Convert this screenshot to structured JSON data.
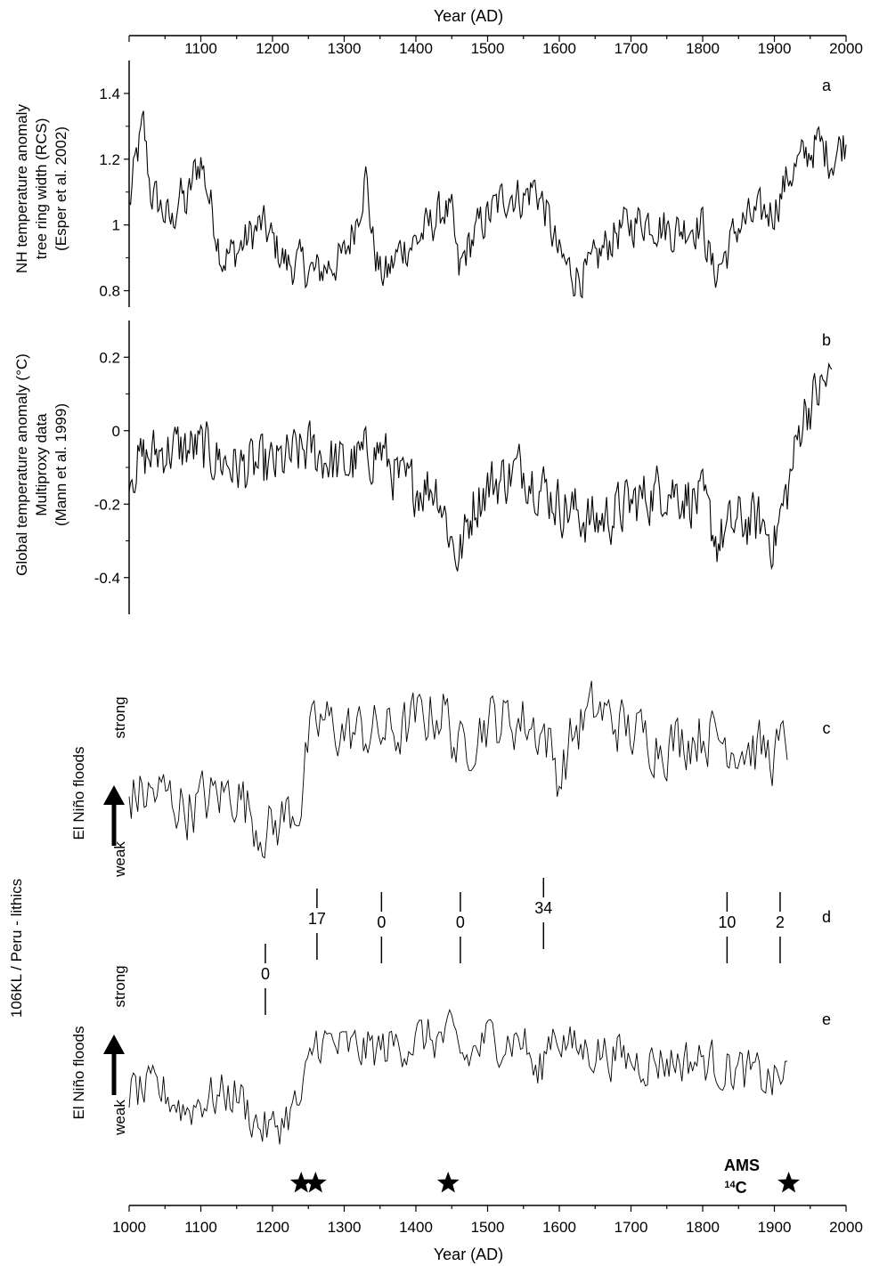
{
  "chart_data": [
    {
      "type": "line",
      "panel": "a",
      "ylabel": [
        "NH temperature anomaly",
        "tree ring width (RCS)",
        "(Esper et al. 2002)"
      ],
      "yticks": [
        0.8,
        1.0,
        1.2,
        1.4
      ],
      "ytick_labels": [
        "0.8",
        "1",
        "1.2",
        "1.4"
      ],
      "ylim": [
        0.75,
        1.5
      ],
      "xlim": [
        1000,
        2000
      ],
      "x_top_label": "Year (AD)",
      "x_top_ticks": [
        "1100",
        "1200",
        "1300",
        "1400",
        "1500",
        "1600",
        "1700",
        "1800",
        "1900",
        "2000"
      ],
      "anchors": [
        [
          1000,
          1.05
        ],
        [
          1010,
          1.2
        ],
        [
          1020,
          1.3
        ],
        [
          1030,
          1.1
        ],
        [
          1045,
          1.05
        ],
        [
          1060,
          1.0
        ],
        [
          1070,
          1.1
        ],
        [
          1080,
          1.05
        ],
        [
          1090,
          1.15
        ],
        [
          1100,
          1.2
        ],
        [
          1115,
          1.05
        ],
        [
          1130,
          0.9
        ],
        [
          1150,
          0.92
        ],
        [
          1170,
          0.97
        ],
        [
          1185,
          1.0
        ],
        [
          1200,
          0.95
        ],
        [
          1220,
          0.88
        ],
        [
          1240,
          0.88
        ],
        [
          1260,
          0.85
        ],
        [
          1280,
          0.88
        ],
        [
          1300,
          0.9
        ],
        [
          1310,
          0.97
        ],
        [
          1320,
          1.05
        ],
        [
          1330,
          1.15
        ],
        [
          1340,
          0.95
        ],
        [
          1350,
          0.85
        ],
        [
          1360,
          0.85
        ],
        [
          1380,
          0.93
        ],
        [
          1400,
          0.95
        ],
        [
          1420,
          1.0
        ],
        [
          1440,
          1.05
        ],
        [
          1450,
          1.02
        ],
        [
          1460,
          0.85
        ],
        [
          1470,
          0.92
        ],
        [
          1490,
          1.0
        ],
        [
          1510,
          1.05
        ],
        [
          1530,
          1.1
        ],
        [
          1550,
          1.08
        ],
        [
          1565,
          1.12
        ],
        [
          1580,
          1.05
        ],
        [
          1600,
          0.9
        ],
        [
          1620,
          0.85
        ],
        [
          1640,
          0.85
        ],
        [
          1660,
          0.92
        ],
        [
          1680,
          0.98
        ],
        [
          1700,
          1.0
        ],
        [
          1720,
          1.02
        ],
        [
          1740,
          1.0
        ],
        [
          1760,
          0.98
        ],
        [
          1780,
          1.0
        ],
        [
          1800,
          1.0
        ],
        [
          1815,
          0.85
        ],
        [
          1830,
          0.9
        ],
        [
          1850,
          1.0
        ],
        [
          1870,
          1.02
        ],
        [
          1900,
          1.05
        ],
        [
          1920,
          1.15
        ],
        [
          1940,
          1.2
        ],
        [
          1960,
          1.25
        ],
        [
          1980,
          1.2
        ],
        [
          1995,
          1.25
        ]
      ],
      "noise": 0.06,
      "label_year": "1100"
    },
    {
      "type": "line",
      "panel": "b",
      "ylabel": [
        "Global temperature anomaly (°C)",
        "Multiproxy data",
        "(Mann et al. 1999)"
      ],
      "yticks": [
        -0.4,
        -0.2,
        0.0,
        0.2
      ],
      "ytick_labels": [
        "-0.4",
        "-0.2",
        "0",
        "0.2"
      ],
      "ylim": [
        -0.5,
        0.3
      ],
      "xlim": [
        1000,
        1980
      ],
      "anchors": [
        [
          1000,
          -0.1
        ],
        [
          1050,
          -0.05
        ],
        [
          1100,
          -0.05
        ],
        [
          1150,
          -0.1
        ],
        [
          1200,
          -0.1
        ],
        [
          1250,
          -0.05
        ],
        [
          1300,
          -0.1
        ],
        [
          1350,
          -0.05
        ],
        [
          1380,
          -0.15
        ],
        [
          1400,
          -0.15
        ],
        [
          1430,
          -0.15
        ],
        [
          1450,
          -0.3
        ],
        [
          1460,
          -0.35
        ],
        [
          1480,
          -0.2
        ],
        [
          1500,
          -0.15
        ],
        [
          1550,
          -0.1
        ],
        [
          1600,
          -0.2
        ],
        [
          1650,
          -0.25
        ],
        [
          1700,
          -0.2
        ],
        [
          1750,
          -0.15
        ],
        [
          1800,
          -0.2
        ],
        [
          1820,
          -0.3
        ],
        [
          1850,
          -0.25
        ],
        [
          1880,
          -0.25
        ],
        [
          1900,
          -0.3
        ],
        [
          1920,
          -0.15
        ],
        [
          1940,
          0.05
        ],
        [
          1960,
          0.1
        ],
        [
          1980,
          0.15
        ]
      ],
      "noise": 0.07
    },
    {
      "type": "line",
      "panel": "c",
      "ylabel": "El Niño floods",
      "scale_labels": [
        "weak",
        "strong"
      ],
      "xlim": [
        1000,
        1920
      ],
      "anchors": [
        [
          1000,
          0.28
        ],
        [
          1050,
          0.28
        ],
        [
          1080,
          0.22
        ],
        [
          1100,
          0.25
        ],
        [
          1150,
          0.3
        ],
        [
          1180,
          0.15
        ],
        [
          1200,
          0.12
        ],
        [
          1220,
          0.2
        ],
        [
          1240,
          0.25
        ],
        [
          1250,
          0.5
        ],
        [
          1270,
          0.6
        ],
        [
          1300,
          0.55
        ],
        [
          1350,
          0.55
        ],
        [
          1380,
          0.55
        ],
        [
          1400,
          0.6
        ],
        [
          1440,
          0.65
        ],
        [
          1460,
          0.45
        ],
        [
          1480,
          0.55
        ],
        [
          1500,
          0.6
        ],
        [
          1550,
          0.6
        ],
        [
          1580,
          0.55
        ],
        [
          1600,
          0.35
        ],
        [
          1620,
          0.55
        ],
        [
          1650,
          0.65
        ],
        [
          1700,
          0.55
        ],
        [
          1750,
          0.5
        ],
        [
          1800,
          0.55
        ],
        [
          1850,
          0.5
        ],
        [
          1900,
          0.45
        ],
        [
          1920,
          0.5
        ]
      ],
      "noise": 0.12
    },
    {
      "type": "line",
      "panel": "e",
      "ylabel": "El Niño floods",
      "scale_labels": [
        "weak",
        "strong"
      ],
      "xlim": [
        1000,
        1920
      ],
      "anchors": [
        [
          1000,
          0.3
        ],
        [
          1050,
          0.3
        ],
        [
          1080,
          0.22
        ],
        [
          1100,
          0.27
        ],
        [
          1150,
          0.3
        ],
        [
          1180,
          0.15
        ],
        [
          1200,
          0.12
        ],
        [
          1220,
          0.2
        ],
        [
          1240,
          0.25
        ],
        [
          1260,
          0.55
        ],
        [
          1300,
          0.5
        ],
        [
          1350,
          0.5
        ],
        [
          1400,
          0.55
        ],
        [
          1450,
          0.55
        ],
        [
          1470,
          0.45
        ],
        [
          1500,
          0.55
        ],
        [
          1550,
          0.55
        ],
        [
          1570,
          0.35
        ],
        [
          1590,
          0.6
        ],
        [
          1620,
          0.5
        ],
        [
          1650,
          0.5
        ],
        [
          1700,
          0.45
        ],
        [
          1750,
          0.45
        ],
        [
          1800,
          0.45
        ],
        [
          1850,
          0.4
        ],
        [
          1900,
          0.35
        ],
        [
          1920,
          0.4
        ]
      ],
      "noise": 0.1
    }
  ],
  "panel_letters": [
    "a",
    "b",
    "c",
    "d",
    "e"
  ],
  "shared_ylabel": "106KL / Peru - lithics",
  "bottom_axis": {
    "label": "Year (AD)",
    "ticks": [
      "1000",
      "1100",
      "1200",
      "1300",
      "1400",
      "1500",
      "1600",
      "1700",
      "1800",
      "1900",
      "2000"
    ]
  },
  "counts": [
    {
      "label": "0",
      "year": 1190
    },
    {
      "label": "17",
      "year": 1262
    },
    {
      "label": "0",
      "year": 1352
    },
    {
      "label": "0",
      "year": 1462
    },
    {
      "label": "34",
      "year": 1578
    },
    {
      "label": "10",
      "year": 1834
    },
    {
      "label": "2",
      "year": 1908
    }
  ],
  "stars": [
    1240,
    1260,
    1445,
    1920
  ],
  "ams_label": [
    "AMS",
    "14",
    "C"
  ]
}
